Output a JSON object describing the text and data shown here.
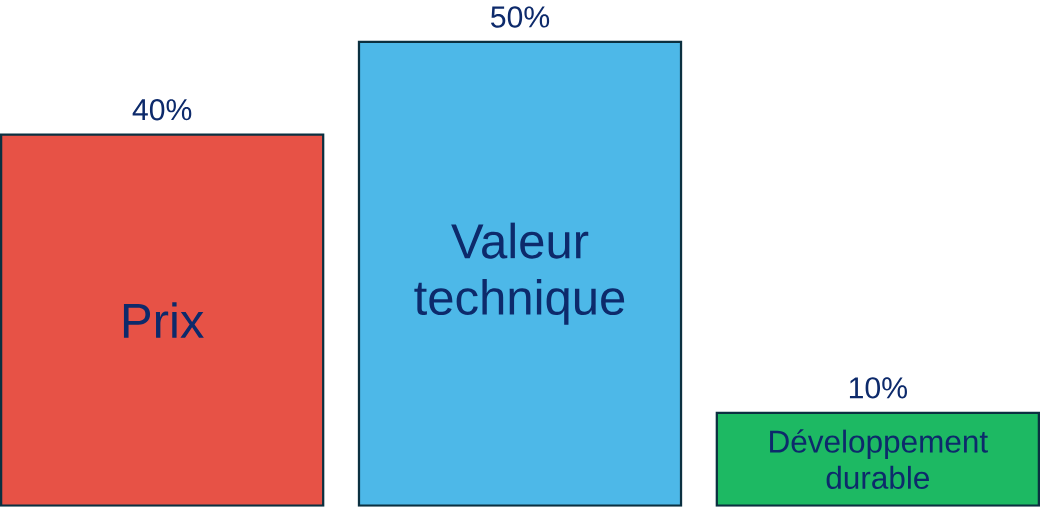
{
  "chart_data": {
    "type": "bar",
    "categories": [
      "Prix",
      "Valeur technique",
      "Développement durable"
    ],
    "values": [
      40,
      50,
      10
    ],
    "colors": [
      "#e75246",
      "#4db8e8",
      "#1db963"
    ],
    "value_labels": [
      "40%",
      "50%",
      "10%"
    ]
  }
}
